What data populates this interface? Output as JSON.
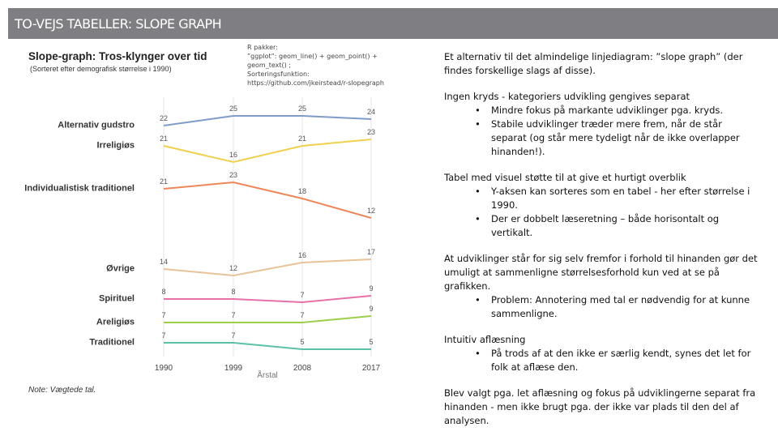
{
  "header": {
    "title": "TO-VEJS TABELLER: SLOPE GRAPH"
  },
  "chart_data": {
    "type": "slope",
    "title": "Slope-graph: Tros-klynger over tid",
    "subtitle": "(Sorteret efter demografisk størrelse i 1990)",
    "x_label": "Årstal",
    "note": "Note: Vægtede tal.",
    "categories": [
      "1990",
      "1999",
      "2008",
      "2017"
    ],
    "series": [
      {
        "name": "Alternativ gudstro",
        "color": "#7f9cc9",
        "values": [
          22,
          25,
          25,
          24
        ]
      },
      {
        "name": "Irreligiøs",
        "color": "#f0d04f",
        "values": [
          21,
          16,
          21,
          23
        ]
      },
      {
        "name": "Individualistisk traditionel",
        "color": "#ee8659",
        "values": [
          21,
          23,
          18,
          12
        ]
      },
      {
        "name": "Øvrige",
        "color": "#e6c398",
        "values": [
          14,
          12,
          16,
          17
        ]
      },
      {
        "name": "Spirituel",
        "color": "#e870a8",
        "values": [
          8,
          8,
          7,
          9
        ]
      },
      {
        "name": "Areligiøs",
        "color": "#9ccf4a",
        "values": [
          7,
          7,
          7,
          9
        ]
      },
      {
        "name": "Traditionel",
        "color": "#5cbfa7",
        "values": [
          7,
          7,
          5,
          5
        ]
      }
    ],
    "grid": true
  },
  "code_note": [
    "R pakker:",
    "”ggplot”: geom_line() + geom_point() +",
    "geom_text() ;",
    "Sorteringsfunktion:",
    "https://github.com/jkeirstead/r-slopegraph"
  ],
  "text": {
    "blocks": [
      {
        "p": "Et alternativ til det almindelige linjediagram: ”slope graph” (der findes forskellige slags af disse)."
      },
      {
        "p": "Ingen kryds - kategoriers udvikling gengives separat",
        "items": [
          "Mindre fokus på markante udviklinger pga. kryds.",
          "Stabile udviklinger træder mere frem, når de står separat (og står mere tydeligt når de ikke overlapper hinanden!)."
        ]
      },
      {
        "p": "Tabel med visuel støtte til at give et hurtigt overblik",
        "items": [
          "Y-aksen kan sorteres som en tabel - her efter størrelse i 1990.",
          "Der er dobbelt læseretning – både horisontalt og vertikalt."
        ]
      },
      {
        "p": "At udviklinger står for sig selv fremfor i forhold til hinanden gør det umuligt at sammenligne størrelsesforhold kun ved at se på grafikken.",
        "items": [
          "Problem: Annotering med tal er nødvendig for at kunne sammenligne."
        ]
      },
      {
        "p": "Intuitiv aflæsning",
        "items": [
          "På trods af at den ikke er særlig kendt, synes det let for folk at aflæse den."
        ]
      },
      {
        "p": "Blev valgt pga. let aflæsning og fokus på udviklingerne separat fra hinanden - men ikke brugt pga. der ikke var plads til den del af analysen."
      }
    ]
  }
}
